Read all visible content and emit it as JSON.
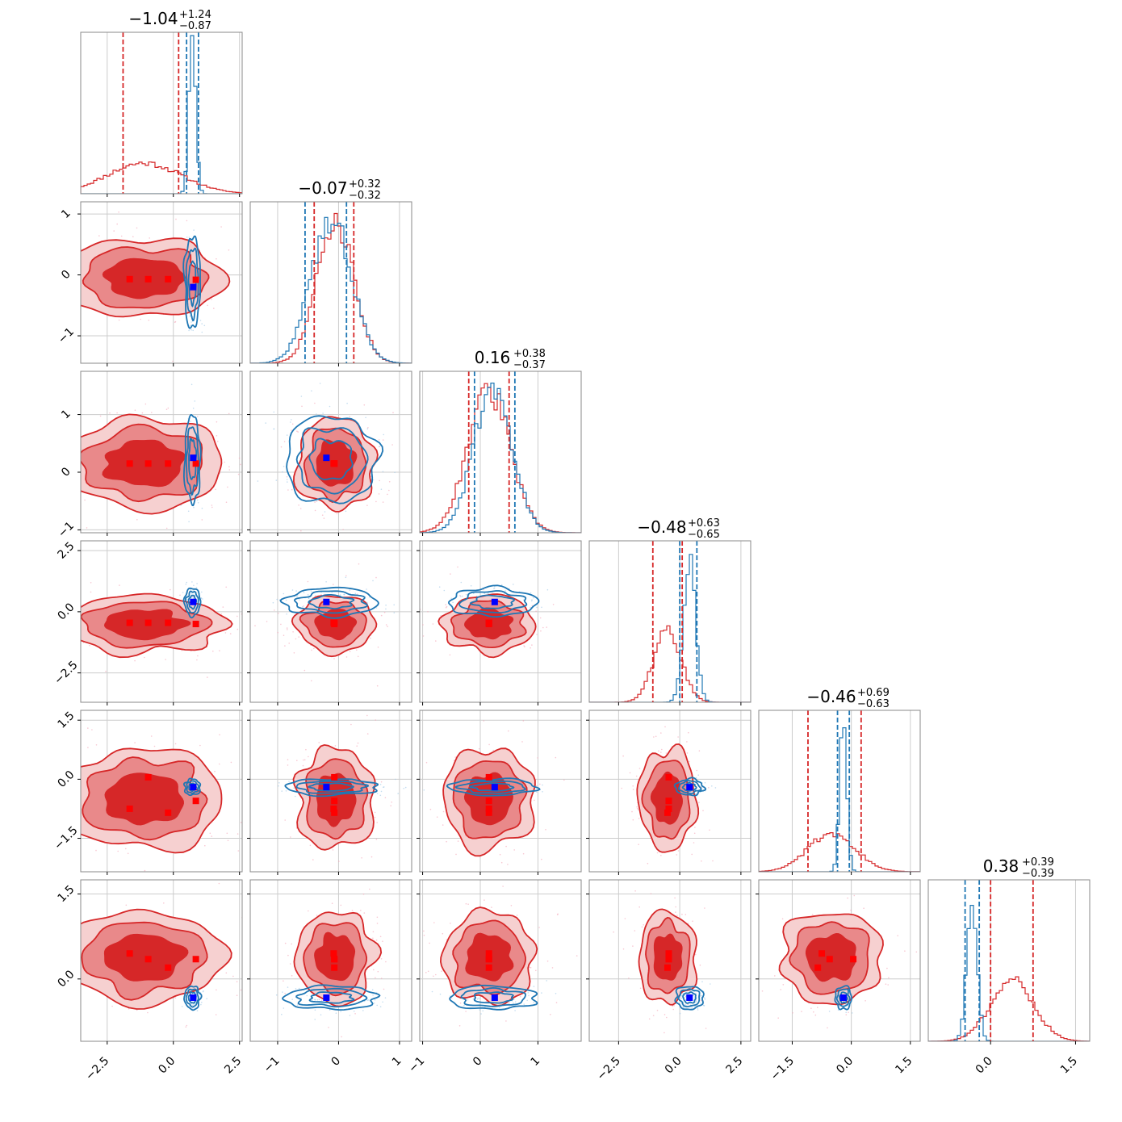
{
  "chart_data": {
    "type": "corner",
    "colors": {
      "red": "#d62728",
      "red_mid": "#e9898a",
      "red_light": "#f6d0d0",
      "blue": "#1f77b4",
      "marker_red": "#ff0000",
      "marker_blue": "#0000ff",
      "grid": "#cccccc",
      "frame": "#888888"
    },
    "grid": true,
    "parameters": [
      {
        "title": {
          "value": "−1.04",
          "upper": "+1.24",
          "lower": "−0.87"
        },
        "range": [
          -3.5,
          2.6
        ],
        "ticks": [
          -2.5,
          0.0,
          2.5
        ],
        "tick_labels": [
          "−2.5",
          "0.0",
          "2.5"
        ],
        "red_hist": {
          "center": -1.1,
          "width": 1.4,
          "peak": 0.19
        },
        "blue_hist": {
          "center": 0.72,
          "width": 0.13,
          "peak": 0.98
        },
        "red_quantiles": [
          -1.9,
          0.2
        ],
        "blue_quantiles": [
          0.5,
          0.95
        ],
        "red_markers": [
          -1.65,
          -0.95,
          -0.2,
          0.85
        ],
        "blue_marker": 0.75
      },
      {
        "title": {
          "value": "−0.07",
          "upper": "+0.32",
          "lower": "−0.32"
        },
        "range": [
          -1.45,
          1.2
        ],
        "ticks": [
          -1,
          0,
          1
        ],
        "tick_labels": [
          "−1",
          "0",
          "1"
        ],
        "red_hist": {
          "center": -0.05,
          "width": 0.3,
          "peak": 0.88
        },
        "blue_hist": {
          "center": -0.12,
          "width": 0.33,
          "peak": 0.9
        },
        "red_quantiles": [
          -0.4,
          0.25
        ],
        "blue_quantiles": [
          -0.55,
          0.13
        ],
        "red_markers": [
          -0.08,
          -0.07,
          -0.07,
          -0.07
        ],
        "blue_marker": -0.2
      },
      {
        "title": {
          "value": "0.16",
          "upper": "+0.38",
          "lower": "−0.37"
        },
        "range": [
          -1.05,
          1.75
        ],
        "ticks": [
          -1,
          0,
          1
        ],
        "tick_labels": [
          "−1",
          "0",
          "1"
        ],
        "red_hist": {
          "center": 0.15,
          "width": 0.37,
          "peak": 0.88
        },
        "blue_hist": {
          "center": 0.22,
          "width": 0.33,
          "peak": 0.92
        },
        "red_quantiles": [
          -0.2,
          0.5
        ],
        "blue_quantiles": [
          -0.1,
          0.6
        ],
        "red_markers": [
          0.15,
          0.15,
          0.15,
          0.15
        ],
        "blue_marker": 0.25
      },
      {
        "title": {
          "value": "−0.48",
          "upper": "+0.63",
          "lower": "−0.65"
        },
        "range": [
          -3.7,
          2.9
        ],
        "ticks": [
          -2.5,
          0.0,
          2.5
        ],
        "tick_labels": [
          "−2.5",
          "0.0",
          "2.5"
        ],
        "red_hist": {
          "center": -0.5,
          "width": 0.55,
          "peak": 0.45
        },
        "blue_hist": {
          "center": 0.4,
          "width": 0.25,
          "peak": 0.88
        },
        "red_quantiles": [
          -1.1,
          0.1
        ],
        "blue_quantiles": [
          0.0,
          0.7
        ],
        "red_markers": [
          -0.45,
          -0.45,
          -0.5,
          -0.45
        ],
        "blue_marker": 0.4
      },
      {
        "title": {
          "value": "−0.46",
          "upper": "+0.69",
          "lower": "−0.63"
        },
        "range": [
          -2.35,
          1.75
        ],
        "ticks": [
          -1.5,
          0.0,
          1.5
        ],
        "tick_labels": [
          "−1.5",
          "0.0",
          "1.5"
        ],
        "red_hist": {
          "center": -0.5,
          "width": 0.6,
          "peak": 0.24
        },
        "blue_hist": {
          "center": -0.2,
          "width": 0.09,
          "peak": 0.95
        },
        "red_quantiles": [
          -1.1,
          0.25
        ],
        "blue_quantiles": [
          -0.35,
          -0.05
        ],
        "red_markers": [
          -0.75,
          0.05,
          -0.85,
          -0.55
        ],
        "blue_marker": -0.2
      },
      {
        "title": {
          "value": "0.38",
          "upper": "+0.39",
          "lower": "−0.39"
        },
        "range": [
          -1.1,
          1.75
        ],
        "ticks": [
          0.0,
          1.5
        ],
        "tick_labels": [
          "0.0",
          "1.5"
        ],
        "red_hist": {
          "center": 0.38,
          "width": 0.38,
          "peak": 0.38
        },
        "blue_hist": {
          "center": -0.33,
          "width": 0.09,
          "peak": 0.88
        },
        "red_quantiles": [
          0.0,
          0.75
        ],
        "blue_quantiles": [
          -0.45,
          -0.2
        ],
        "red_markers": [
          0.35,
          0.45,
          0.35,
          0.2
        ],
        "blue_marker": -0.33
      }
    ],
    "y_ticks_rows": [
      null,
      {
        "ticks": [
          -1,
          0,
          1
        ],
        "labels": [
          "−1",
          "0",
          "1"
        ]
      },
      {
        "ticks": [
          -1,
          0,
          1
        ],
        "labels": [
          "−1",
          "0",
          "1"
        ]
      },
      {
        "ticks": [
          -2.5,
          0.0,
          2.5
        ],
        "labels": [
          "−2.5",
          "0.0",
          "2.5"
        ]
      },
      {
        "ticks": [
          -1.5,
          0.0,
          1.5
        ],
        "labels": [
          "−1.5",
          "0.0",
          "1.5"
        ]
      },
      {
        "ticks": [
          0.0,
          1.5
        ],
        "labels": [
          "0.0",
          "1.5"
        ]
      }
    ]
  }
}
